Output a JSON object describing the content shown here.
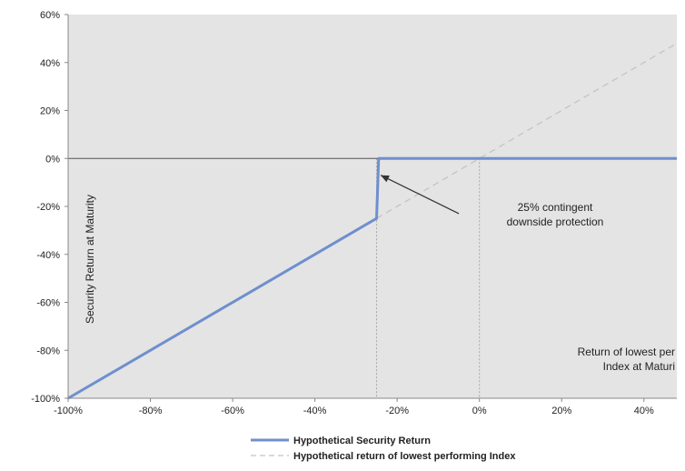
{
  "chart_data": {
    "type": "line",
    "title": "",
    "xlabel": "Return of lowest performing Index at Maturity",
    "xlabel_lines": [
      "Return of lowest per",
      "Index at Maturi"
    ],
    "ylabel": "Security Return at Maturity",
    "xlim": [
      -100,
      48
    ],
    "ylim": [
      -100,
      60
    ],
    "x_ticks": [
      -100,
      -80,
      -60,
      -40,
      -20,
      0,
      20,
      40
    ],
    "x_tick_labels": [
      "-100%",
      "-80%",
      "-60%",
      "-40%",
      "-20%",
      "0%",
      "20%",
      "40%"
    ],
    "y_ticks": [
      -100,
      -80,
      -60,
      -40,
      -20,
      0,
      20,
      40,
      60
    ],
    "y_tick_labels": [
      "-100%",
      "-80%",
      "-60%",
      "-40%",
      "-20%",
      "0%",
      "20%",
      "40%",
      "60%"
    ],
    "grid": false,
    "legend_position": "bottom-center",
    "series": [
      {
        "name": "Hypothetical Security Return",
        "style": "solid",
        "color": "#6f8fce",
        "x": [
          -100,
          -25,
          -24.8,
          -24.5,
          48
        ],
        "y": [
          -100,
          -25,
          -15,
          0,
          0
        ]
      },
      {
        "name": "Hypothetical return of lowest performing Index",
        "style": "dashed",
        "color": "#c4c4c4",
        "x": [
          -25,
          48
        ],
        "y": [
          -25,
          48
        ]
      }
    ],
    "reference_lines": {
      "horizontal_zero": 0,
      "vertical_dotted": [
        -25,
        0
      ]
    },
    "annotations": [
      {
        "text_lines": [
          "25% contingent",
          "downside protection"
        ],
        "arrow_to": {
          "x": -24,
          "y": -7
        },
        "arrow_from": {
          "x": -5,
          "y": -23
        }
      }
    ]
  },
  "colors": {
    "plot_bg": "#e4e4e4",
    "zero_line": "#555555",
    "axis": "#888888",
    "ref_line": "#a8a8a8",
    "arrow": "#333333"
  }
}
